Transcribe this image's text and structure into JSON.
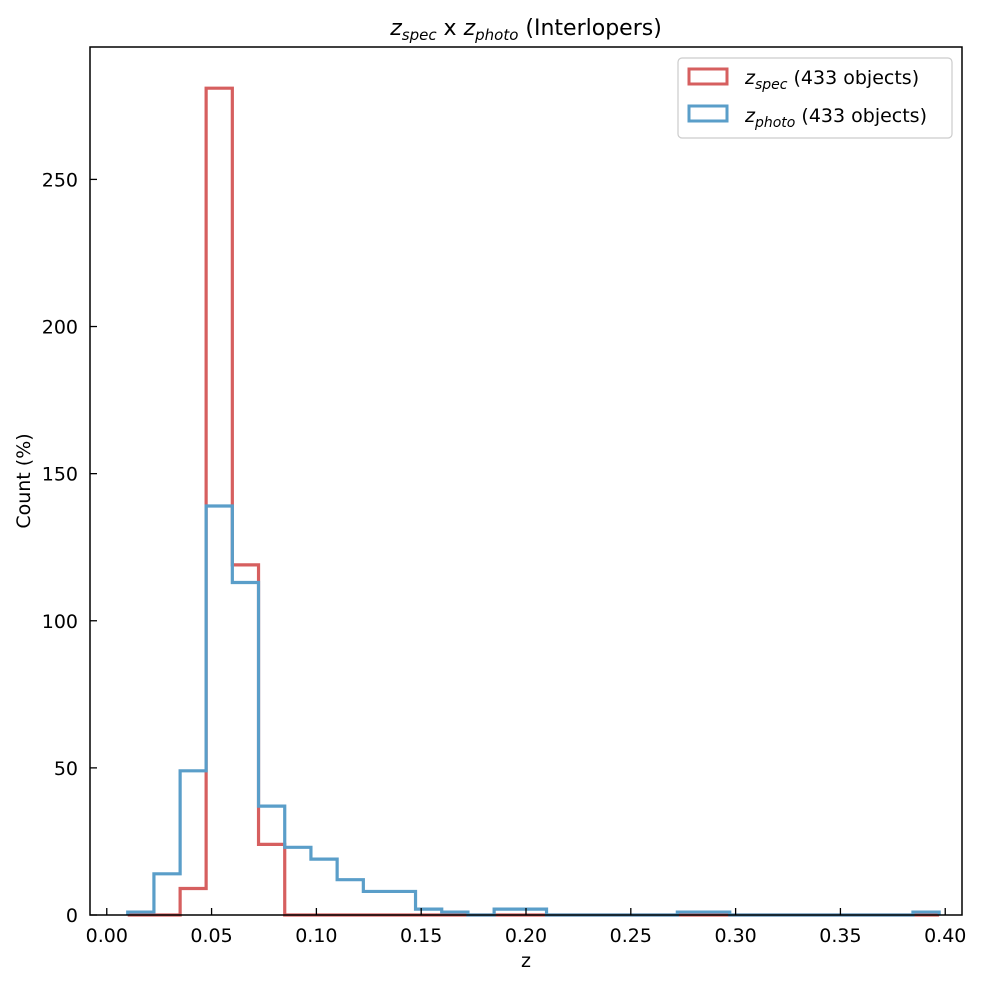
{
  "chart_data": {
    "type": "histogram",
    "title": {
      "main": "z",
      "sub1": "spec",
      "mid": " x ",
      "main2": "z",
      "sub2": "photo",
      "suffix": " (Interlopers)"
    },
    "xlabel": "z",
    "ylabel": "Count (%)",
    "xlim": [
      -0.008,
      0.408
    ],
    "ylim": [
      0,
      295
    ],
    "xticks": [
      0.0,
      0.05,
      0.1,
      0.15,
      0.2,
      0.25,
      0.3,
      0.35,
      0.4
    ],
    "xtick_labels": [
      "0.00",
      "0.05",
      "0.10",
      "0.15",
      "0.20",
      "0.25",
      "0.30",
      "0.35",
      "0.40"
    ],
    "yticks": [
      0,
      50,
      100,
      150,
      200,
      250
    ],
    "ytick_labels": [
      "0",
      "50",
      "100",
      "150",
      "200",
      "250"
    ],
    "grid": false,
    "legend_position": "top-right",
    "bin_edges": [
      0.01,
      0.0225,
      0.035,
      0.0474,
      0.0599,
      0.0724,
      0.0849,
      0.0974,
      0.1099,
      0.1224,
      0.1349,
      0.1473,
      0.1598,
      0.1723,
      0.1848,
      0.1973,
      0.2098,
      0.2223,
      0.2347,
      0.2472,
      0.2597,
      0.2722,
      0.2847,
      0.2972,
      0.3097,
      0.3222,
      0.3347,
      0.3471,
      0.3596,
      0.3721,
      0.3846,
      0.3971
    ],
    "series": [
      {
        "name": {
          "base": "z",
          "sub": "spec",
          "suffix": " (433 objects)"
        },
        "color": "#d65f5f",
        "values": [
          0,
          0,
          9,
          281,
          119,
          24,
          0,
          0,
          0,
          0,
          0,
          0,
          0,
          0,
          0,
          0,
          0,
          0,
          0,
          0,
          0,
          0,
          0,
          0,
          0,
          0,
          0,
          0,
          0,
          0,
          0
        ]
      },
      {
        "name": {
          "base": "z",
          "sub": "photo",
          "suffix": " (433 objects)"
        },
        "color": "#5a9ec9",
        "values": [
          1,
          14,
          49,
          139,
          113,
          37,
          23,
          19,
          12,
          8,
          8,
          2,
          1,
          0,
          2,
          2,
          0,
          0,
          0,
          0,
          0,
          1,
          1,
          0,
          0,
          0,
          0,
          0,
          0,
          0,
          1
        ]
      }
    ]
  }
}
